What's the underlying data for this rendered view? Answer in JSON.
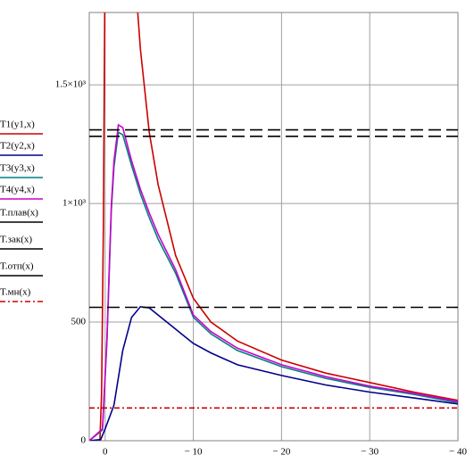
{
  "chart_data": {
    "type": "line",
    "xlim": [
      1.8,
      -40
    ],
    "ylim": [
      0,
      1805
    ],
    "xticks": [
      0,
      {
        "value": -10,
        "label": "− 10"
      },
      {
        "value": -20,
        "label": "− 20"
      },
      {
        "value": -30,
        "label": "− 30"
      },
      {
        "value": -40,
        "label": "− 40"
      }
    ],
    "yticks": [
      0,
      500,
      {
        "value": 1000,
        "label": "1×10³"
      },
      {
        "value": 1500,
        "label": "1.5×10³"
      }
    ],
    "grid": true,
    "legend": "left",
    "series": [
      {
        "name": "T1(y1,x)",
        "color": "#cc0000",
        "dash": "solid",
        "x": [
          0.6,
          0.4,
          0.2,
          0.05,
          -1,
          -3.7,
          -4,
          -5,
          -6,
          -8,
          -10,
          -12,
          -15,
          -20,
          -25,
          -30,
          -35,
          -40
        ],
        "values": [
          0,
          200,
          900,
          1805,
          null,
          1805,
          1650,
          1300,
          1080,
          780,
          600,
          500,
          420,
          340,
          285,
          245,
          205,
          170
        ]
      },
      {
        "name": "T2(y2,x)",
        "color": "#00008b",
        "dash": "solid",
        "x": [
          1.8,
          0.5,
          0,
          -1,
          -2,
          -3,
          -4,
          -5,
          -6,
          -8,
          -10,
          -12,
          -15,
          -20,
          -25,
          -30,
          -35,
          -40
        ],
        "values": [
          0,
          5,
          50,
          150,
          380,
          520,
          565,
          560,
          530,
          470,
          410,
          370,
          320,
          275,
          235,
          205,
          180,
          155
        ]
      },
      {
        "name": "T3(y3,x)",
        "color": "#008080",
        "dash": "solid",
        "x": [
          1.8,
          0.3,
          -0.2,
          -0.7,
          -1,
          -1.5,
          -2,
          -3,
          -4,
          -5,
          -6,
          -8,
          -10,
          -12,
          -15,
          -20,
          -25,
          -30,
          -35,
          -40
        ],
        "values": [
          0,
          45,
          420,
          970,
          1155,
          1300,
          1290,
          1160,
          1040,
          940,
          850,
          705,
          520,
          450,
          380,
          312,
          263,
          225,
          195,
          160
        ]
      },
      {
        "name": "T4(y4,x)",
        "color": "#cc00cc",
        "dash": "solid",
        "x": [
          1.8,
          0.3,
          -0.2,
          -0.7,
          -1,
          -1.5,
          -2,
          -3,
          -4,
          -5,
          -6,
          -8,
          -10,
          -12,
          -15,
          -20,
          -25,
          -30,
          -35,
          -40
        ],
        "values": [
          0,
          50,
          430,
          990,
          1180,
          1331,
          1320,
          1180,
          1060,
          960,
          870,
          720,
          530,
          460,
          390,
          320,
          270,
          230,
          200,
          165
        ]
      },
      {
        "name": "T.плав(x)",
        "color": "#000000",
        "dash": "long",
        "x": [
          1.8,
          -40
        ],
        "values": [
          1310,
          1310
        ]
      },
      {
        "name": "T.зак(x)",
        "color": "#000000",
        "dash": "long",
        "x": [
          1.8,
          -40
        ],
        "values": [
          1283,
          1283
        ]
      },
      {
        "name": "T.отп(x)",
        "color": "#000000",
        "dash": "long",
        "x": [
          1.8,
          -40
        ],
        "values": [
          562,
          562
        ]
      },
      {
        "name": "T.мн(x)",
        "color": "#cc0000",
        "dash": "dashdot",
        "x": [
          1.8,
          -40
        ],
        "values": [
          138,
          138
        ]
      }
    ]
  }
}
